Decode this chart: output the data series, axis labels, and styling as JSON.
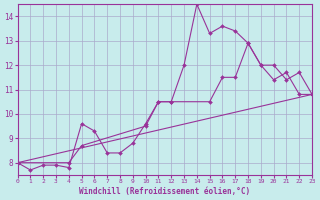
{
  "title": "",
  "xlabel": "Windchill (Refroidissement éolien,°C)",
  "ylabel": "",
  "bg_color": "#c8ecec",
  "line_color": "#993399",
  "grid_color": "#aaaacc",
  "xlim": [
    0,
    23
  ],
  "ylim": [
    7.5,
    14.5
  ],
  "yticks": [
    8,
    9,
    10,
    11,
    12,
    13,
    14
  ],
  "xticks": [
    0,
    1,
    2,
    3,
    4,
    5,
    6,
    7,
    8,
    9,
    10,
    11,
    12,
    13,
    14,
    15,
    16,
    17,
    18,
    19,
    20,
    21,
    22,
    23
  ],
  "series1_x": [
    0,
    1,
    2,
    3,
    4,
    5,
    6,
    7,
    8,
    9,
    10,
    11,
    12,
    13,
    14,
    15,
    16,
    17,
    18,
    19,
    20,
    21,
    22,
    23
  ],
  "series1_y": [
    8.0,
    7.7,
    7.9,
    7.9,
    7.8,
    9.6,
    9.3,
    8.4,
    8.4,
    8.8,
    9.6,
    10.5,
    10.5,
    12.0,
    14.5,
    13.3,
    13.6,
    13.4,
    12.9,
    12.0,
    11.4,
    11.7,
    10.8,
    10.8
  ],
  "series2_x": [
    0,
    4,
    5,
    10,
    11,
    12,
    15,
    16,
    17,
    18,
    19,
    20,
    21,
    22,
    23
  ],
  "series2_y": [
    8.0,
    8.0,
    8.7,
    9.5,
    10.5,
    10.5,
    10.5,
    11.5,
    11.5,
    12.9,
    12.0,
    12.0,
    11.4,
    11.7,
    10.8
  ],
  "series3_x": [
    0,
    23
  ],
  "series3_y": [
    8.0,
    10.8
  ]
}
